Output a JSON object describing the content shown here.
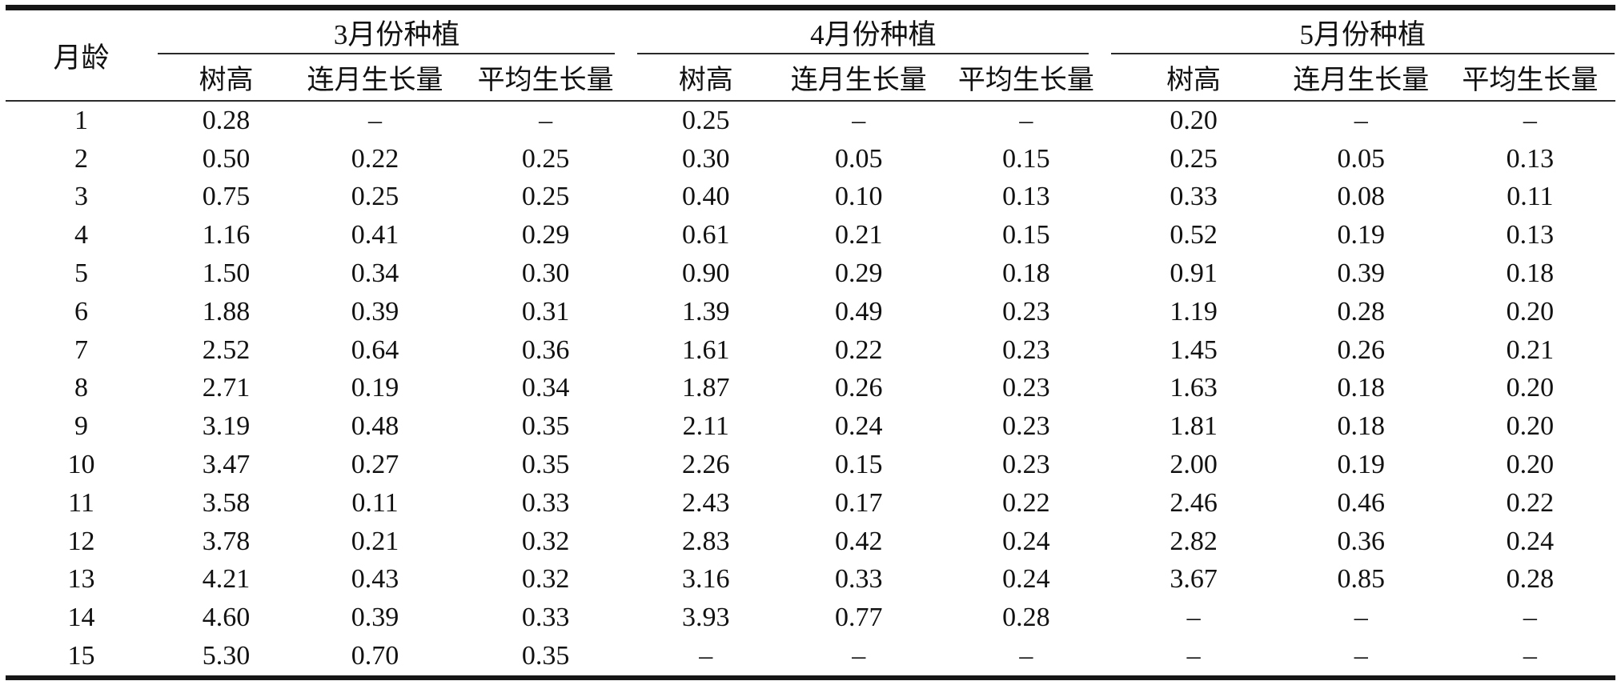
{
  "table": {
    "row_header": "月龄",
    "groups": [
      {
        "label": "3月份种植",
        "columns": [
          "树高",
          "连月生长量",
          "平均生长量"
        ]
      },
      {
        "label": "4月份种植",
        "columns": [
          "树高",
          "连月生长量",
          "平均生长量"
        ]
      },
      {
        "label": "5月份种植",
        "columns": [
          "树高",
          "连月生长量",
          "平均生长量"
        ]
      }
    ],
    "empty_mark": "–",
    "rows": [
      {
        "age": "1",
        "cells": [
          "0.28",
          "–",
          "–",
          "0.25",
          "–",
          "–",
          "0.20",
          "–",
          "–"
        ]
      },
      {
        "age": "2",
        "cells": [
          "0.50",
          "0.22",
          "0.25",
          "0.30",
          "0.05",
          "0.15",
          "0.25",
          "0.05",
          "0.13"
        ]
      },
      {
        "age": "3",
        "cells": [
          "0.75",
          "0.25",
          "0.25",
          "0.40",
          "0.10",
          "0.13",
          "0.33",
          "0.08",
          "0.11"
        ]
      },
      {
        "age": "4",
        "cells": [
          "1.16",
          "0.41",
          "0.29",
          "0.61",
          "0.21",
          "0.15",
          "0.52",
          "0.19",
          "0.13"
        ]
      },
      {
        "age": "5",
        "cells": [
          "1.50",
          "0.34",
          "0.30",
          "0.90",
          "0.29",
          "0.18",
          "0.91",
          "0.39",
          "0.18"
        ]
      },
      {
        "age": "6",
        "cells": [
          "1.88",
          "0.39",
          "0.31",
          "1.39",
          "0.49",
          "0.23",
          "1.19",
          "0.28",
          "0.20"
        ]
      },
      {
        "age": "7",
        "cells": [
          "2.52",
          "0.64",
          "0.36",
          "1.61",
          "0.22",
          "0.23",
          "1.45",
          "0.26",
          "0.21"
        ]
      },
      {
        "age": "8",
        "cells": [
          "2.71",
          "0.19",
          "0.34",
          "1.87",
          "0.26",
          "0.23",
          "1.63",
          "0.18",
          "0.20"
        ]
      },
      {
        "age": "9",
        "cells": [
          "3.19",
          "0.48",
          "0.35",
          "2.11",
          "0.24",
          "0.23",
          "1.81",
          "0.18",
          "0.20"
        ]
      },
      {
        "age": "10",
        "cells": [
          "3.47",
          "0.27",
          "0.35",
          "2.26",
          "0.15",
          "0.23",
          "2.00",
          "0.19",
          "0.20"
        ]
      },
      {
        "age": "11",
        "cells": [
          "3.58",
          "0.11",
          "0.33",
          "2.43",
          "0.17",
          "0.22",
          "2.46",
          "0.46",
          "0.22"
        ]
      },
      {
        "age": "12",
        "cells": [
          "3.78",
          "0.21",
          "0.32",
          "2.83",
          "0.42",
          "0.24",
          "2.82",
          "0.36",
          "0.24"
        ]
      },
      {
        "age": "13",
        "cells": [
          "4.21",
          "0.43",
          "0.32",
          "3.16",
          "0.33",
          "0.24",
          "3.67",
          "0.85",
          "0.28"
        ]
      },
      {
        "age": "14",
        "cells": [
          "4.60",
          "0.39",
          "0.33",
          "3.93",
          "0.77",
          "0.28",
          "–",
          "–",
          "–"
        ]
      },
      {
        "age": "15",
        "cells": [
          "5.30",
          "0.70",
          "0.35",
          "–",
          "–",
          "–",
          "–",
          "–",
          "–"
        ]
      }
    ]
  },
  "chart_data": {
    "type": "table",
    "row_label": "月龄",
    "ages": [
      1,
      2,
      3,
      4,
      5,
      6,
      7,
      8,
      9,
      10,
      11,
      12,
      13,
      14,
      15
    ],
    "series": [
      {
        "name": "3月份种植 树高",
        "values": [
          0.28,
          0.5,
          0.75,
          1.16,
          1.5,
          1.88,
          2.52,
          2.71,
          3.19,
          3.47,
          3.58,
          3.78,
          4.21,
          4.6,
          5.3
        ]
      },
      {
        "name": "3月份种植 连月生长量",
        "values": [
          null,
          0.22,
          0.25,
          0.41,
          0.34,
          0.39,
          0.64,
          0.19,
          0.48,
          0.27,
          0.11,
          0.21,
          0.43,
          0.39,
          0.7
        ]
      },
      {
        "name": "3月份种植 平均生长量",
        "values": [
          null,
          0.25,
          0.25,
          0.29,
          0.3,
          0.31,
          0.36,
          0.34,
          0.35,
          0.35,
          0.33,
          0.32,
          0.32,
          0.33,
          0.35
        ]
      },
      {
        "name": "4月份种植 树高",
        "values": [
          0.25,
          0.3,
          0.4,
          0.61,
          0.9,
          1.39,
          1.61,
          1.87,
          2.11,
          2.26,
          2.43,
          2.83,
          3.16,
          3.93,
          null
        ]
      },
      {
        "name": "4月份种植 连月生长量",
        "values": [
          null,
          0.05,
          0.1,
          0.21,
          0.29,
          0.49,
          0.22,
          0.26,
          0.24,
          0.15,
          0.17,
          0.42,
          0.33,
          0.77,
          null
        ]
      },
      {
        "name": "4月份种植 平均生长量",
        "values": [
          null,
          0.15,
          0.13,
          0.15,
          0.18,
          0.23,
          0.23,
          0.23,
          0.23,
          0.23,
          0.22,
          0.24,
          0.24,
          0.28,
          null
        ]
      },
      {
        "name": "5月份种植 树高",
        "values": [
          0.2,
          0.25,
          0.33,
          0.52,
          0.91,
          1.19,
          1.45,
          1.63,
          1.81,
          2.0,
          2.46,
          2.82,
          3.67,
          null,
          null
        ]
      },
      {
        "name": "5月份种植 连月生长量",
        "values": [
          null,
          0.05,
          0.08,
          0.19,
          0.39,
          0.28,
          0.26,
          0.18,
          0.18,
          0.19,
          0.46,
          0.36,
          0.85,
          null,
          null
        ]
      },
      {
        "name": "5月份种植 平均生长量",
        "values": [
          null,
          0.13,
          0.11,
          0.13,
          0.18,
          0.2,
          0.21,
          0.2,
          0.2,
          0.2,
          0.22,
          0.24,
          0.28,
          null,
          null
        ]
      }
    ],
    "missing_value_mark": "–",
    "grid": "horizontal rules only (three-line/booktabs style)",
    "legend_position": "none"
  }
}
